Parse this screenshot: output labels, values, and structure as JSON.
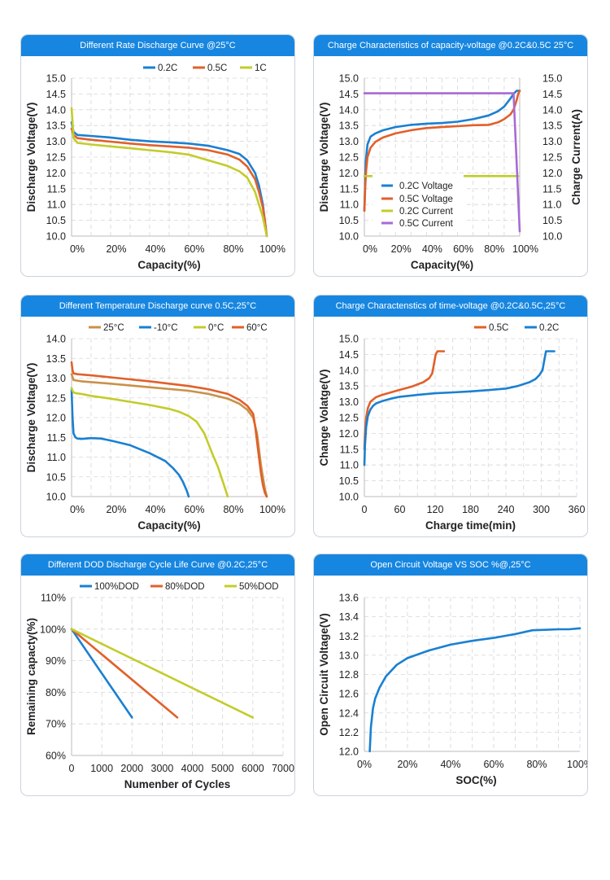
{
  "colors": {
    "blue": "#1a80d1",
    "orange": "#e1602a",
    "yellowgreen": "#c3cc2b",
    "tan": "#c9914a",
    "purple": "#a86ad4"
  },
  "chart_data": [
    {
      "id": "c1",
      "type": "line",
      "title": "Different Rate Discharge Curve @25°C",
      "xlabel": "Capacity(%)",
      "ylabel": "Discharge Voltage(V)",
      "xlim": [
        0,
        100
      ],
      "ylim": [
        10.0,
        15.0
      ],
      "xticks": [
        "0%",
        "20%",
        "40%",
        "60%",
        "80%",
        "100%"
      ],
      "yticks": [
        "10.0",
        "10.5",
        "11.0",
        "11.5",
        "12.0",
        "12.5",
        "13.0",
        "13.5",
        "14.0",
        "14.5",
        "15.0"
      ],
      "legend": "top",
      "grid": true,
      "series": [
        {
          "name": "0.2C",
          "color": "blue",
          "x": [
            0,
            1,
            3,
            10,
            20,
            30,
            40,
            50,
            60,
            70,
            80,
            86,
            90,
            94,
            96,
            98,
            99,
            100
          ],
          "y": [
            13.6,
            13.3,
            13.2,
            13.17,
            13.12,
            13.05,
            13.0,
            12.97,
            12.93,
            12.86,
            12.72,
            12.6,
            12.4,
            12.0,
            11.6,
            11.0,
            10.5,
            10.0
          ]
        },
        {
          "name": "0.5C",
          "color": "orange",
          "x": [
            0,
            1,
            3,
            10,
            20,
            30,
            40,
            50,
            60,
            70,
            80,
            86,
            90,
            94,
            96,
            98,
            99,
            100
          ],
          "y": [
            13.4,
            13.2,
            13.1,
            13.05,
            12.99,
            12.93,
            12.88,
            12.84,
            12.8,
            12.72,
            12.58,
            12.42,
            12.2,
            11.8,
            11.4,
            10.9,
            10.5,
            10.0
          ]
        },
        {
          "name": "1C",
          "color": "yellowgreen",
          "x": [
            0,
            0.5,
            1,
            3,
            10,
            20,
            30,
            40,
            50,
            60,
            70,
            80,
            86,
            90,
            94,
            96,
            98,
            99,
            100
          ],
          "y": [
            14.05,
            13.6,
            13.1,
            12.95,
            12.9,
            12.84,
            12.78,
            12.72,
            12.66,
            12.58,
            12.4,
            12.22,
            12.05,
            11.85,
            11.4,
            11.0,
            10.6,
            10.3,
            10.0
          ]
        }
      ]
    },
    {
      "id": "c2",
      "type": "line",
      "title": "Charge Characteristics of capacity-voltage @0.2C&0.5C  25°C",
      "xlabel": "Capacity(%)",
      "ylabel": "Discharge Voltage(V)",
      "y2label": "Charge Current(A)",
      "xlim": [
        0,
        100
      ],
      "ylim": [
        10.0,
        15.0
      ],
      "xticks": [
        "0%",
        "20%",
        "40%",
        "60%",
        "80%",
        "100%"
      ],
      "yticks": [
        "10.0",
        "10.5",
        "11.0",
        "11.5",
        "12.0",
        "12.5",
        "13.0",
        "13.5",
        "14.0",
        "14.5",
        "15.0"
      ],
      "y2ticks": [
        "10.0",
        "10.5",
        "11.0",
        "11.5",
        "12.0",
        "12.5",
        "13.0",
        "13.5",
        "14.0",
        "14.5",
        "15.0"
      ],
      "legend": "bottom-left",
      "grid": true,
      "series": [
        {
          "name": "0.2C Voltage",
          "color": "blue",
          "x": [
            0,
            0.5,
            1,
            2,
            4,
            7,
            12,
            20,
            30,
            40,
            50,
            60,
            70,
            80,
            86,
            90,
            94,
            96,
            98,
            100
          ],
          "y": [
            10.8,
            11.8,
            12.4,
            12.9,
            13.15,
            13.25,
            13.35,
            13.45,
            13.52,
            13.56,
            13.58,
            13.62,
            13.7,
            13.82,
            13.95,
            14.1,
            14.35,
            14.5,
            14.6,
            14.6
          ]
        },
        {
          "name": "0.5C Voltage",
          "color": "orange",
          "x": [
            0,
            0.5,
            1,
            2,
            4,
            7,
            12,
            20,
            30,
            40,
            50,
            60,
            70,
            80,
            86,
            90,
            94,
            96,
            98,
            99,
            100
          ],
          "y": [
            10.8,
            11.5,
            12.0,
            12.5,
            12.8,
            12.98,
            13.12,
            13.25,
            13.35,
            13.42,
            13.45,
            13.48,
            13.51,
            13.52,
            13.6,
            13.7,
            13.85,
            14.0,
            14.3,
            14.5,
            14.6
          ]
        },
        {
          "name": "0.2C Current",
          "color": "yellowgreen",
          "x": [
            0,
            99
          ],
          "y": [
            11.9,
            11.9
          ]
        },
        {
          "name": "0.5C Current",
          "color": "purple",
          "x": [
            0,
            96,
            100
          ],
          "y": [
            14.52,
            14.52,
            10.15
          ]
        }
      ]
    },
    {
      "id": "c3",
      "type": "line",
      "title": "Different Temperature Discharge curve 0.5C,25°C",
      "xlabel": "Capacity(%)",
      "ylabel": "Discharge Voltage(V)",
      "xlim": [
        0,
        100
      ],
      "ylim": [
        10.0,
        14.0
      ],
      "xticks": [
        "0%",
        "20%",
        "40%",
        "60%",
        "80%",
        "100%"
      ],
      "yticks": [
        "10.0",
        "10.5",
        "11.0",
        "11.5",
        "12.0",
        "12.5",
        "13.0",
        "13.5",
        "14.0"
      ],
      "legend": "top",
      "grid": true,
      "series": [
        {
          "name": "25°C",
          "color": "tan",
          "x": [
            0,
            1,
            5,
            20,
            40,
            60,
            70,
            80,
            86,
            90,
            93,
            95,
            96,
            97,
            98,
            99,
            100
          ],
          "y": [
            13.1,
            12.95,
            12.92,
            12.86,
            12.77,
            12.68,
            12.6,
            12.48,
            12.35,
            12.2,
            12.0,
            11.6,
            11.2,
            10.8,
            10.5,
            10.2,
            10.0
          ]
        },
        {
          "name": "-10°C",
          "color": "blue",
          "x": [
            0,
            0.5,
            1,
            2,
            3,
            5,
            10,
            15,
            20,
            30,
            40,
            48,
            52,
            55,
            57,
            59,
            60
          ],
          "y": [
            12.7,
            12.0,
            11.6,
            11.5,
            11.47,
            11.46,
            11.48,
            11.47,
            11.42,
            11.3,
            11.1,
            10.9,
            10.72,
            10.55,
            10.38,
            10.15,
            10.0
          ]
        },
        {
          "name": "0°C",
          "color": "yellowgreen",
          "x": [
            0,
            0.5,
            1,
            2,
            5,
            10,
            20,
            30,
            40,
            50,
            55,
            60,
            64,
            68,
            72,
            75,
            77,
            79,
            80
          ],
          "y": [
            12.75,
            12.68,
            12.64,
            12.62,
            12.6,
            12.55,
            12.48,
            12.4,
            12.32,
            12.22,
            12.15,
            12.04,
            11.9,
            11.6,
            11.1,
            10.75,
            10.45,
            10.15,
            10.0
          ]
        },
        {
          "name": "60°C",
          "color": "orange",
          "x": [
            0,
            0.5,
            1,
            3,
            10,
            20,
            30,
            40,
            50,
            60,
            70,
            80,
            86,
            90,
            93,
            94,
            95,
            96,
            97,
            98,
            99,
            100
          ],
          "y": [
            13.4,
            13.2,
            13.12,
            13.1,
            13.07,
            13.02,
            12.97,
            12.92,
            12.86,
            12.8,
            12.72,
            12.6,
            12.45,
            12.3,
            12.1,
            11.8,
            11.4,
            11.0,
            10.6,
            10.3,
            10.1,
            10.0
          ]
        }
      ]
    },
    {
      "id": "c4",
      "type": "line",
      "title": "Charge Charactenstics of time-voltage @0.2C&0.5C,25°C",
      "xlabel": "Charge time(min)",
      "ylabel": "Change Volatge(V)",
      "xlim": [
        0,
        360
      ],
      "ylim": [
        10.0,
        15.0
      ],
      "xticks": [
        "0",
        "60",
        "120",
        "180",
        "240",
        "300",
        "360"
      ],
      "yticks": [
        "10.0",
        "10.5",
        "11.0",
        "11.5",
        "12.0",
        "12.5",
        "13.0",
        "13.5",
        "14.0",
        "14.5",
        "15.0"
      ],
      "legend": "top-right",
      "grid": true,
      "series": [
        {
          "name": "0.5C",
          "color": "orange",
          "x": [
            0,
            1,
            3,
            6,
            10,
            20,
            30,
            45,
            60,
            80,
            100,
            110,
            115,
            118,
            121,
            124,
            130,
            135
          ],
          "y": [
            11.5,
            12.0,
            12.5,
            12.8,
            13.0,
            13.15,
            13.22,
            13.3,
            13.38,
            13.48,
            13.62,
            13.75,
            13.9,
            14.2,
            14.5,
            14.6,
            14.6,
            14.6
          ]
        },
        {
          "name": "0.2C",
          "color": "blue",
          "x": [
            0,
            1,
            3,
            6,
            10,
            15,
            20,
            30,
            45,
            60,
            90,
            120,
            150,
            180,
            210,
            240,
            260,
            280,
            290,
            297,
            302,
            305,
            308,
            315,
            322
          ],
          "y": [
            11.0,
            11.6,
            12.2,
            12.55,
            12.75,
            12.88,
            12.95,
            13.02,
            13.1,
            13.16,
            13.22,
            13.27,
            13.3,
            13.33,
            13.37,
            13.42,
            13.5,
            13.62,
            13.72,
            13.85,
            14.0,
            14.3,
            14.6,
            14.6,
            14.6
          ]
        }
      ]
    },
    {
      "id": "c5",
      "type": "line",
      "title": "Different DOD Discharge Cycle Life Curve @0.2C,25°C",
      "xlabel": "Numenber of Cycles",
      "ylabel": "Remaining capacty(%)",
      "xlim": [
        0,
        7000
      ],
      "ylim": [
        60,
        110
      ],
      "xticks": [
        "0",
        "1000",
        "2000",
        "3000",
        "4000",
        "5000",
        "6000",
        "7000"
      ],
      "yticks": [
        "60%",
        "70%",
        "80%",
        "90%",
        "100%",
        "110%"
      ],
      "legend": "top",
      "grid": true,
      "series": [
        {
          "name": "100%DOD",
          "color": "blue",
          "x": [
            0,
            2000
          ],
          "y": [
            100,
            72
          ]
        },
        {
          "name": "80%DOD",
          "color": "orange",
          "x": [
            0,
            3500
          ],
          "y": [
            100,
            72
          ]
        },
        {
          "name": "50%DOD",
          "color": "yellowgreen",
          "x": [
            0,
            6000
          ],
          "y": [
            100,
            72
          ]
        }
      ]
    },
    {
      "id": "c6",
      "type": "line",
      "title": "Open Circuit Voltage VS SOC %@,25°C",
      "xlabel": "SOC(%)",
      "ylabel": "Open Circuit Voltage(V)",
      "xlim": [
        0,
        100
      ],
      "ylim": [
        12.0,
        13.6
      ],
      "xticks": [
        "0%",
        "20%",
        "40%",
        "60%",
        "80%",
        "100%"
      ],
      "yticks": [
        "12.0",
        "12.2",
        "12.4",
        "12.6",
        "12.8",
        "13.0",
        "13.2",
        "13.4",
        "13.6"
      ],
      "legend": "none",
      "grid": true,
      "series": [
        {
          "name": "",
          "color": "blue",
          "x": [
            2.5,
            3,
            4,
            5,
            7,
            10,
            15,
            20,
            30,
            40,
            50,
            60,
            70,
            78,
            85,
            90,
            95,
            100
          ],
          "y": [
            12.0,
            12.25,
            12.45,
            12.55,
            12.66,
            12.78,
            12.9,
            12.97,
            13.05,
            13.11,
            13.15,
            13.18,
            13.22,
            13.26,
            13.265,
            13.27,
            13.27,
            13.28
          ]
        }
      ]
    }
  ]
}
